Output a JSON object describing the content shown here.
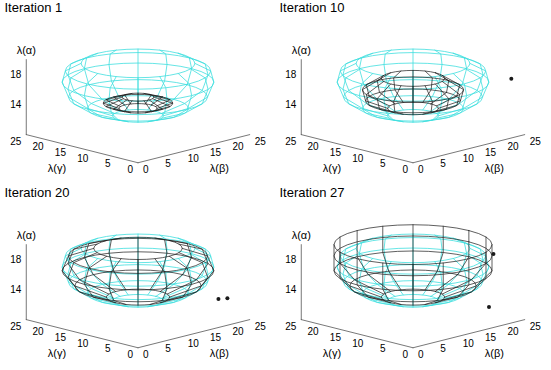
{
  "chart_data": [
    {
      "type": "surface3d",
      "title": "Iteration 1",
      "xlabel": "λ(β)",
      "ylabel": "λ(γ)",
      "zlabel": "λ(α)",
      "xlim": [
        0,
        25
      ],
      "xticks": [
        0,
        5,
        10,
        15,
        20,
        25
      ],
      "ylim": [
        0,
        25
      ],
      "yticks": [
        0,
        5,
        10,
        15,
        20,
        25
      ],
      "zlim": [
        10,
        20
      ],
      "zticks": [
        14,
        18
      ],
      "series": [
        {
          "color": "#3fdede",
          "center": [
            12.5,
            12.5
          ],
          "z": [
            12.5,
            13.5,
            15,
            17,
            18.5,
            19.5
          ],
          "radius": [
            4,
            8,
            11,
            12,
            11.5,
            9
          ]
        },
        {
          "color": "#1a1a1a",
          "center": [
            12.5,
            12.5
          ],
          "z": [
            13.5,
            14.2,
            15
          ],
          "radius": [
            3,
            5.5,
            2.5
          ]
        }
      ],
      "points": {
        "x": [],
        "y": [],
        "z": []
      }
    },
    {
      "type": "surface3d",
      "title": "Iteration 10",
      "xlabel": "λ(β)",
      "ylabel": "λ(γ)",
      "zlabel": "λ(α)",
      "xlim": [
        0,
        25
      ],
      "xticks": [
        0,
        5,
        10,
        15,
        20,
        25
      ],
      "ylim": [
        0,
        25
      ],
      "yticks": [
        0,
        5,
        10,
        15,
        20,
        25
      ],
      "zlim": [
        10,
        20
      ],
      "zticks": [
        14,
        18
      ],
      "series": [
        {
          "color": "#3fdede",
          "center": [
            12.5,
            12.5
          ],
          "z": [
            12.5,
            13.5,
            15,
            17,
            18.5,
            19.5
          ],
          "radius": [
            4,
            8,
            11,
            12,
            11.5,
            9
          ]
        },
        {
          "color": "#1a1a1a",
          "center": [
            12.5,
            12.5
          ],
          "z": [
            13.5,
            14.5,
            16,
            17.5
          ],
          "radius": [
            4,
            7.5,
            8,
            5
          ]
        }
      ],
      "points": {
        "x": [
          25
        ],
        "y": [
          3
        ],
        "z": [
          17
        ]
      }
    },
    {
      "type": "surface3d",
      "title": "Iteration 20",
      "xlabel": "λ(β)",
      "ylabel": "λ(γ)",
      "zlabel": "λ(α)",
      "xlim": [
        0,
        25
      ],
      "xticks": [
        0,
        5,
        10,
        15,
        20,
        25
      ],
      "ylim": [
        0,
        25
      ],
      "yticks": [
        0,
        5,
        10,
        15,
        20,
        25
      ],
      "zlim": [
        10,
        20
      ],
      "zticks": [
        14,
        18
      ],
      "series": [
        {
          "color": "#3fdede",
          "center": [
            12.5,
            12.5
          ],
          "z": [
            12.5,
            13.5,
            15,
            17,
            18.5,
            19.5
          ],
          "radius": [
            4,
            8,
            11,
            12,
            11.5,
            9
          ]
        },
        {
          "color": "#1a1a1a",
          "center": [
            12.5,
            12.5
          ],
          "z": [
            13,
            14.5,
            16.5,
            18.5,
            19.5
          ],
          "radius": [
            5,
            10,
            12,
            11,
            7
          ]
        }
      ],
      "points": {
        "x": [
          22,
          24
        ],
        "y": [
          2,
          6
        ],
        "z": [
          13,
          12
        ]
      }
    },
    {
      "type": "surface3d",
      "title": "Iteration 27",
      "xlabel": "λ(β)",
      "ylabel": "λ(γ)",
      "zlabel": "λ(α)",
      "xlim": [
        0,
        25
      ],
      "xticks": [
        0,
        5,
        10,
        15,
        20,
        25
      ],
      "ylim": [
        0,
        25
      ],
      "yticks": [
        0,
        5,
        10,
        15,
        20,
        25
      ],
      "zlim": [
        10,
        20
      ],
      "zticks": [
        14,
        18
      ],
      "series": [
        {
          "color": "#3fdede",
          "center": [
            12.5,
            12.5
          ],
          "z": [
            12.5,
            13.5,
            15,
            17,
            18.5,
            19.5
          ],
          "radius": [
            4,
            8,
            11,
            12,
            11.5,
            9
          ]
        },
        {
          "color": "#1a1a1a",
          "center": [
            12.5,
            12.5
          ],
          "z": [
            13,
            14.5,
            16.5,
            18.5,
            20
          ],
          "radius": [
            5,
            10,
            12.5,
            12.5,
            12.5
          ]
        }
      ],
      "points": {
        "x": [
          24,
          20
        ],
        "y": [
          6,
          3
        ],
        "z": [
          18,
          12
        ]
      }
    }
  ]
}
